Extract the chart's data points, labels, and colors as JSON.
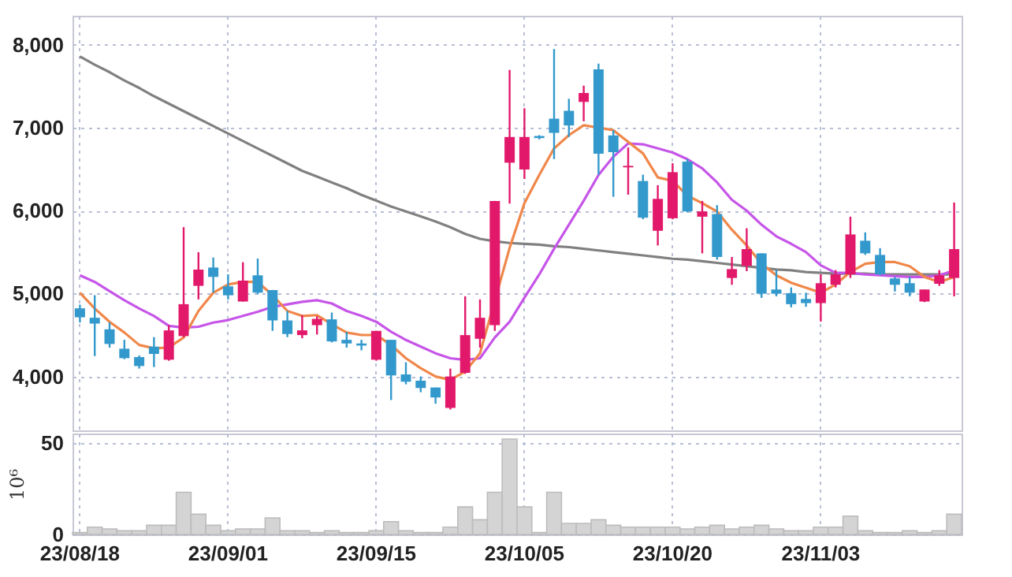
{
  "chart_data": [
    {
      "type": "candlestick",
      "categories": [
        null,
        null,
        null,
        null,
        null,
        null,
        null,
        null,
        null,
        null,
        null,
        null,
        null,
        null,
        null,
        null,
        null,
        null,
        null,
        null,
        null,
        null,
        null,
        null,
        null,
        null,
        null,
        null,
        null,
        null,
        null,
        null,
        null,
        null,
        null,
        null,
        null,
        null,
        null,
        null,
        null,
        null,
        null,
        null,
        null,
        null,
        null,
        null,
        null,
        null,
        null,
        null,
        null,
        null,
        null,
        null,
        null,
        null,
        null,
        null
      ],
      "ohlc": [
        [
          4822,
          4866,
          4651,
          4714
        ],
        [
          4708,
          4980,
          4246,
          4638
        ],
        [
          4569,
          4651,
          4348,
          4392
        ],
        [
          4335,
          4442,
          4209,
          4221
        ],
        [
          4234,
          4253,
          4095,
          4126
        ],
        [
          4360,
          4474,
          4114,
          4272
        ],
        [
          4202,
          4619,
          4190,
          4556
        ],
        [
          4487,
          5801,
          4474,
          4872
        ],
        [
          5093,
          5498,
          4929,
          5289
        ],
        [
          5314,
          5434,
          5011,
          5201
        ],
        [
          5087,
          5232,
          4929,
          4979
        ],
        [
          4904,
          5378,
          4904,
          5156
        ],
        [
          5220,
          5422,
          4992,
          5011
        ],
        [
          5043,
          5043,
          4550,
          4676
        ],
        [
          4676,
          4790,
          4474,
          4512
        ],
        [
          4499,
          4739,
          4461,
          4556
        ],
        [
          4619,
          4727,
          4506,
          4695
        ],
        [
          4689,
          4771,
          4411,
          4423
        ],
        [
          4442,
          4537,
          4348,
          4398
        ],
        [
          4398,
          4442,
          4316,
          4373
        ],
        [
          4202,
          4550,
          4190,
          4550
        ],
        [
          4442,
          4442,
          3716,
          4013
        ],
        [
          4025,
          4171,
          3905,
          3937
        ],
        [
          3949,
          4000,
          3810,
          3861
        ],
        [
          3867,
          3867,
          3671,
          3747
        ],
        [
          3621,
          4095,
          3602,
          4000
        ],
        [
          4044,
          4967,
          4032,
          4499
        ],
        [
          4455,
          4929,
          4348,
          4708
        ],
        [
          4619,
          6117,
          4550,
          6117
        ],
        [
          6578,
          7697,
          6085,
          6888
        ],
        [
          6496,
          7235,
          6382,
          6888
        ],
        [
          6900,
          6910,
          6860,
          6875
        ],
        [
          7109,
          7949,
          6622,
          6938
        ],
        [
          7204,
          7349,
          6888,
          7027
        ],
        [
          7311,
          7507,
          7077,
          7419
        ],
        [
          7703,
          7773,
          6433,
          6686
        ],
        [
          6907,
          6970,
          6167,
          6705
        ],
        [
          6522,
          6761,
          6193,
          6540
        ],
        [
          6357,
          6433,
          5896,
          5915
        ],
        [
          5757,
          6307,
          5580,
          6142
        ],
        [
          5908,
          6572,
          5896,
          6464
        ],
        [
          6591,
          6622,
          5978,
          5991
        ],
        [
          5927,
          6117,
          5485,
          5991
        ],
        [
          5959,
          6066,
          5409,
          5441
        ],
        [
          5188,
          5441,
          5106,
          5295
        ],
        [
          5333,
          5788,
          5270,
          5536
        ],
        [
          5485,
          5485,
          4948,
          4998
        ],
        [
          5049,
          5283,
          4967,
          4998
        ],
        [
          5005,
          5074,
          4834,
          4872
        ],
        [
          4935,
          5011,
          4840,
          4885
        ],
        [
          4885,
          5232,
          4663,
          5125
        ],
        [
          5106,
          5283,
          5074,
          5232
        ],
        [
          5232,
          5927,
          5188,
          5713
        ],
        [
          5637,
          5738,
          5466,
          5485
        ],
        [
          5466,
          5548,
          5220,
          5232
        ],
        [
          5182,
          5201,
          5024,
          5106
        ],
        [
          5125,
          5201,
          4967,
          5011
        ],
        [
          4904,
          5049,
          4897,
          5049
        ],
        [
          5118,
          5283,
          5093,
          5220
        ],
        [
          5188,
          6098,
          4967,
          5536
        ]
      ],
      "colors": [
        "#3399cc",
        "#3399cc",
        "#3399cc",
        "#3399cc",
        "#3399cc",
        "#3399cc",
        "#e2196b",
        "#e2196b",
        "#e2196b",
        "#3399cc",
        "#3399cc",
        "#e2196b",
        "#3399cc",
        "#3399cc",
        "#3399cc",
        "#e2196b",
        "#e2196b",
        "#3399cc",
        "#3399cc",
        "#3399cc",
        "#e2196b",
        "#3399cc",
        "#3399cc",
        "#3399cc",
        "#3399cc",
        "#e2196b",
        "#e2196b",
        "#e2196b",
        "#e2196b",
        "#e2196b",
        "#e2196b",
        "#3399cc",
        "#3399cc",
        "#3399cc",
        "#e2196b",
        "#3399cc",
        "#3399cc",
        "#e2196b",
        "#3399cc",
        "#e2196b",
        "#e2196b",
        "#3399cc",
        "#e2196b",
        "#3399cc",
        "#e2196b",
        "#e2196b",
        "#3399cc",
        "#3399cc",
        "#3399cc",
        "#3399cc",
        "#e2196b",
        "#e2196b",
        "#e2196b",
        "#3399cc",
        "#3399cc",
        "#3399cc",
        "#3399cc",
        "#e2196b",
        "#e2196b",
        "#e2196b"
      ],
      "series": [
        {
          "type": "line",
          "color": "#808080",
          "values": [
            7860,
            7760,
            7670,
            7570,
            7480,
            7380,
            7290,
            7200,
            7110,
            7020,
            6930,
            6840,
            6750,
            6660,
            6570,
            6480,
            6410,
            6340,
            6270,
            6190,
            6120,
            6050,
            5990,
            5930,
            5870,
            5800,
            5720,
            5660,
            5630,
            5610,
            5600,
            5590,
            5570,
            5560,
            5540,
            5520,
            5500,
            5480,
            5460,
            5440,
            5420,
            5410,
            5390,
            5370,
            5350,
            5330,
            5310,
            5290,
            5280,
            5260,
            5250,
            5240,
            5240,
            5240,
            5230,
            5230,
            5230,
            5230,
            5230,
            5230
          ]
        },
        {
          "type": "line",
          "color": "#c655e8",
          "values": [
            5220,
            5140,
            5030,
            4920,
            4820,
            4730,
            4610,
            4590,
            4600,
            4650,
            4680,
            4730,
            4780,
            4840,
            4870,
            4900,
            4920,
            4880,
            4790,
            4730,
            4660,
            4540,
            4440,
            4360,
            4280,
            4220,
            4200,
            4220,
            4470,
            4660,
            4950,
            5230,
            5540,
            5830,
            6120,
            6430,
            6650,
            6810,
            6800,
            6750,
            6700,
            6620,
            6510,
            6340,
            6130,
            6000,
            5830,
            5690,
            5600,
            5500,
            5340,
            5250,
            5250,
            5230,
            5220,
            5210,
            5200,
            5200,
            5220,
            5280
          ]
        },
        {
          "type": "line",
          "color": "#f0874a",
          "values": [
            5010,
            4820,
            4660,
            4530,
            4380,
            4340,
            4350,
            4470,
            4790,
            5010,
            5110,
            5140,
            5140,
            4980,
            4790,
            4730,
            4740,
            4630,
            4530,
            4500,
            4500,
            4380,
            4220,
            4100,
            4000,
            3960,
            4060,
            4280,
            null,
            5550,
            6090,
            6430,
            6750,
            6910,
            7030,
            7000,
            6970,
            6830,
            6690,
            6400,
            6360,
            6180,
            6090,
            5990,
            5770,
            5580,
            5360,
            5220,
            5130,
            5070,
            5010,
            5110,
            5260,
            5360,
            5380,
            5380,
            5330,
            5200,
            5140,
            5200
          ]
        }
      ],
      "ylim": [
        3350,
        8350
      ],
      "yticks": [
        {
          "value": 4000,
          "label": "4,000"
        },
        {
          "value": 5000,
          "label": "5,000"
        },
        {
          "value": 6000,
          "label": "6,000"
        },
        {
          "value": 7000,
          "label": "7,000"
        },
        {
          "value": 8000,
          "label": "8,000"
        }
      ],
      "grid": true,
      "tick_labels": "y"
    },
    {
      "type": "bar",
      "categories": [
        "23/08/18",
        null,
        null,
        null,
        null,
        null,
        null,
        null,
        null,
        null,
        "23/09/01",
        null,
        null,
        null,
        null,
        null,
        null,
        null,
        null,
        null,
        "23/09/15",
        null,
        null,
        null,
        null,
        null,
        null,
        null,
        null,
        null,
        "23/10/05",
        null,
        null,
        null,
        null,
        null,
        null,
        null,
        null,
        null,
        "23/10/20",
        null,
        null,
        null,
        null,
        null,
        null,
        null,
        null,
        null,
        "23/11/03",
        null,
        null,
        null,
        null,
        null,
        null,
        null,
        null,
        null
      ],
      "values": [
        1,
        4,
        3,
        2,
        2,
        5,
        5,
        23,
        11,
        5,
        2,
        3,
        3,
        9,
        2,
        2,
        1,
        2,
        1,
        1,
        2,
        7,
        2,
        1,
        1,
        4,
        15,
        8,
        23,
        52,
        15,
        1,
        23,
        6,
        6,
        8,
        5,
        4,
        4,
        4,
        4,
        3,
        4,
        5,
        3,
        4,
        5,
        3,
        2,
        2,
        4,
        4,
        10,
        2,
        1,
        1,
        2,
        1,
        2,
        11
      ],
      "color": "#d4d4d4",
      "ylabel": "10⁶",
      "ylim": [
        0,
        55
      ],
      "yticks": [
        0,
        50
      ],
      "grid": true
    }
  ]
}
